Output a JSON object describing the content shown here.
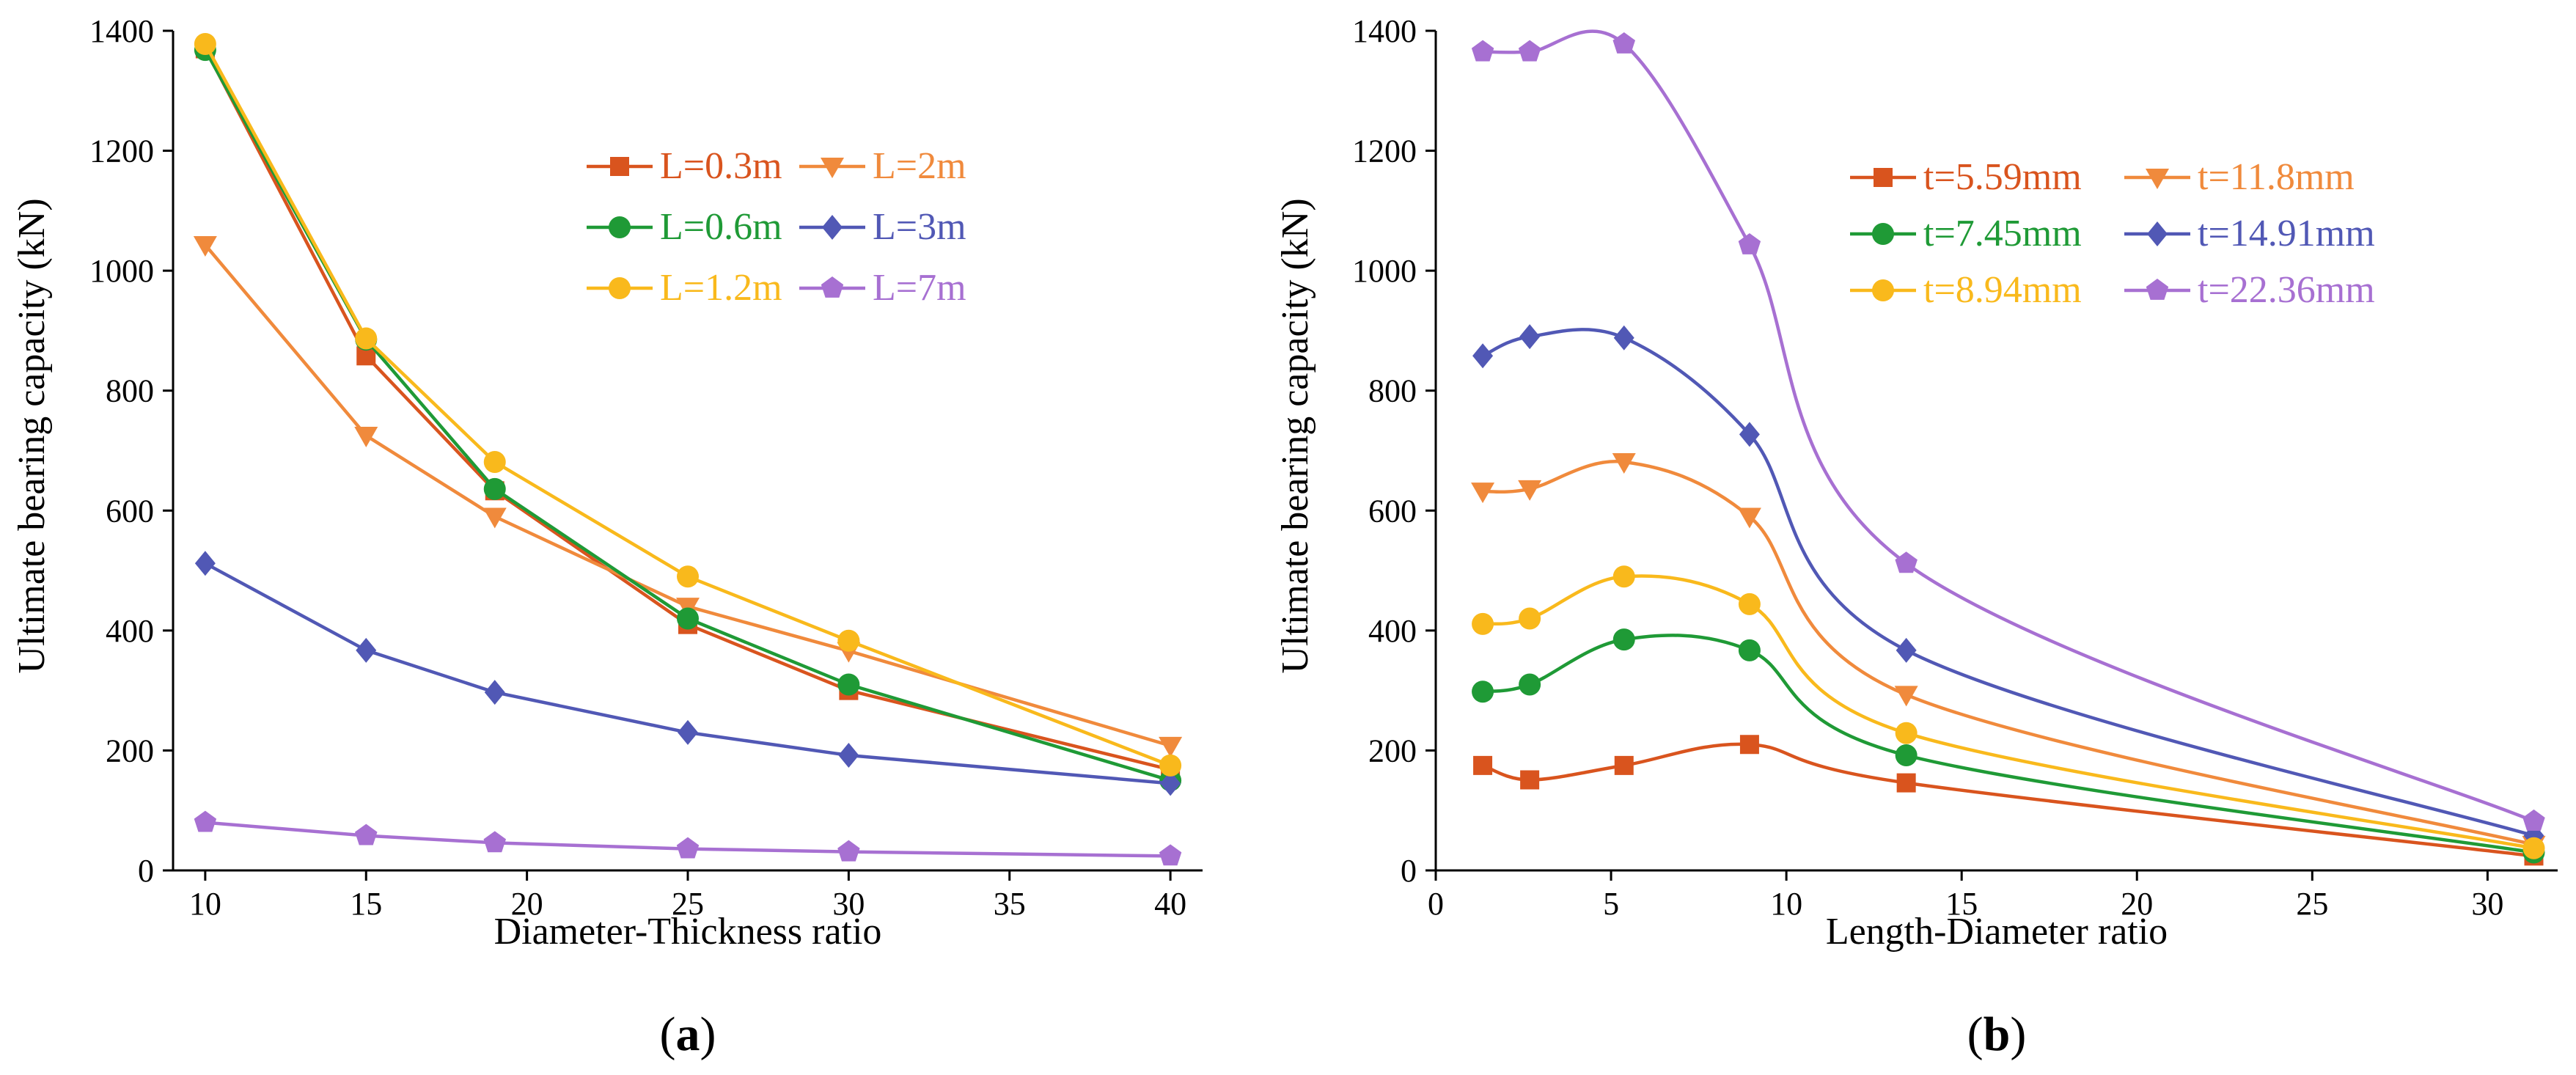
{
  "chart_data": [
    {
      "type": "line",
      "panel": "a",
      "panel_label": "(a)",
      "title": "",
      "xlabel": "Diameter-Thickness ratio",
      "ylabel": "Ultimate bearing capacity (kN)",
      "xlim": [
        9,
        41
      ],
      "ylim": [
        0,
        1400
      ],
      "xticks": [
        10,
        15,
        20,
        25,
        30,
        35,
        40
      ],
      "yticks": [
        0,
        200,
        400,
        600,
        800,
        1000,
        1200,
        1400
      ],
      "grid": false,
      "legend_position": "top-right",
      "legend_columns": 2,
      "x": [
        10,
        15,
        19,
        25,
        30,
        40
      ],
      "series": [
        {
          "name": "L=0.3m",
          "color": "#d9541e",
          "marker": "square",
          "values": [
            1370,
            858,
            633,
            410,
            300,
            168
          ]
        },
        {
          "name": "L=2m",
          "color": "#f08a3c",
          "marker": "triangle-down",
          "values": [
            1043,
            725,
            590,
            440,
            366,
            208
          ]
        },
        {
          "name": "L=0.6m",
          "color": "#1f9a36",
          "marker": "circle",
          "values": [
            1368,
            885,
            636,
            420,
            310,
            150
          ]
        },
        {
          "name": "L=3m",
          "color": "#5158b5",
          "marker": "diamond",
          "values": [
            512,
            367,
            297,
            230,
            192,
            145
          ]
        },
        {
          "name": "L=1.2m",
          "color": "#f9b91c",
          "marker": "circle",
          "values": [
            1378,
            887,
            681,
            490,
            383,
            175
          ]
        },
        {
          "name": "L=7m",
          "color": "#a770d2",
          "marker": "pentagon",
          "values": [
            80,
            58,
            46,
            36,
            31,
            24
          ]
        }
      ]
    },
    {
      "type": "line",
      "panel": "b",
      "panel_label": "(b)",
      "title": "",
      "xlabel": "Length-Diameter ratio",
      "ylabel": "Ultimate bearing capacity (kN)",
      "xlim": [
        0,
        32
      ],
      "ylim": [
        0,
        1400
      ],
      "xticks": [
        0,
        5,
        10,
        15,
        20,
        25,
        30
      ],
      "yticks": [
        0,
        200,
        400,
        600,
        800,
        1000,
        1200,
        1400
      ],
      "grid": false,
      "legend_position": "top-right",
      "legend_columns": 2,
      "x": [
        1.34,
        2.68,
        5.37,
        8.95,
        13.42,
        31.32
      ],
      "series": [
        {
          "name": "t=5.59mm",
          "color": "#d9541e",
          "marker": "square",
          "values": [
            175,
            151,
            175,
            210,
            146,
            24
          ]
        },
        {
          "name": "t=11.8mm",
          "color": "#f08a3c",
          "marker": "triangle-down",
          "values": [
            632,
            636,
            681,
            590,
            293,
            43
          ]
        },
        {
          "name": "t=7.45mm",
          "color": "#1f9a36",
          "marker": "circle",
          "values": [
            298,
            310,
            385,
            367,
            192,
            30
          ]
        },
        {
          "name": "t=14.91mm",
          "color": "#5158b5",
          "marker": "diamond",
          "values": [
            858,
            890,
            888,
            727,
            367,
            58
          ]
        },
        {
          "name": "t=8.94mm",
          "color": "#f9b91c",
          "marker": "circle",
          "values": [
            411,
            420,
            490,
            444,
            229,
            37
          ]
        },
        {
          "name": "t=22.36mm",
          "color": "#a770d2",
          "marker": "pentagon",
          "values": [
            1365,
            1365,
            1378,
            1043,
            512,
            82
          ]
        }
      ]
    }
  ]
}
